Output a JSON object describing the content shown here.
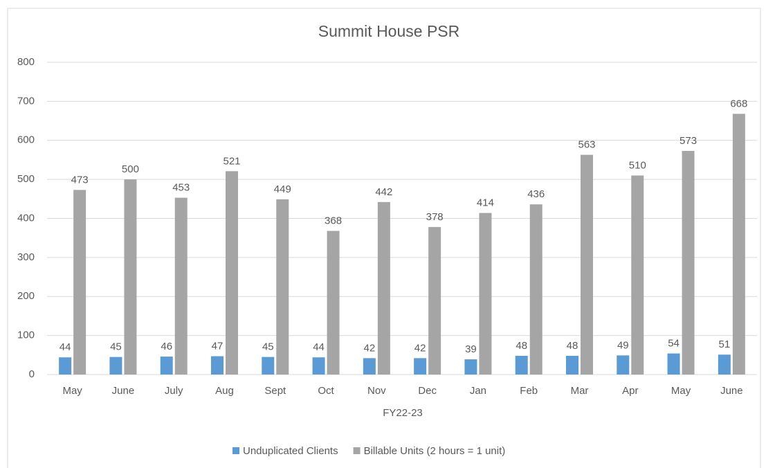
{
  "chart_data": {
    "type": "bar",
    "title": "Summit House PSR",
    "x_label": "FY22-23",
    "categories": [
      "May",
      "June",
      "July",
      "Aug",
      "Sept",
      "Oct",
      "Nov",
      "Dec",
      "Jan",
      "Feb",
      "Mar",
      "Apr",
      "May",
      "June"
    ],
    "series": [
      {
        "name": "Unduplicated Clients",
        "color": "#5b9bd5",
        "values": [
          44,
          45,
          46,
          47,
          45,
          44,
          42,
          42,
          39,
          48,
          48,
          49,
          54,
          51
        ]
      },
      {
        "name": "Billable Units (2 hours = 1 unit)",
        "color": "#a5a5a5",
        "values": [
          473,
          500,
          453,
          521,
          449,
          368,
          442,
          378,
          414,
          436,
          563,
          510,
          573,
          668
        ]
      }
    ],
    "ylim": [
      0,
      800
    ],
    "yticks": [
      0,
      100,
      200,
      300,
      400,
      500,
      600,
      700,
      800
    ],
    "grid": true,
    "legend": "bottom"
  }
}
